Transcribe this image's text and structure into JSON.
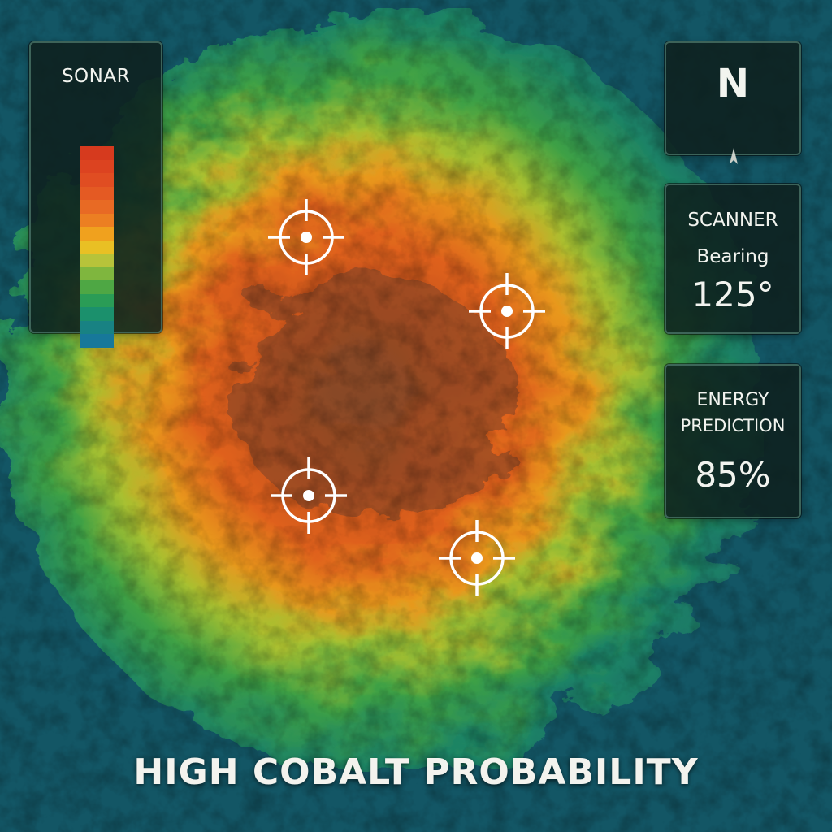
{
  "sonar": {
    "title": "SONAR",
    "scale_colors": [
      "#d63a1e",
      "#dc4320",
      "#e04d22",
      "#e45a23",
      "#e86a24",
      "#ec7f22",
      "#f0a11e",
      "#e9c024",
      "#b7c33a",
      "#7fb63e",
      "#4ea744",
      "#2a9c56",
      "#1b906c",
      "#188283",
      "#17789a"
    ]
  },
  "compass": {
    "heading_letter": "N",
    "needle_icon": "north-arrow-icon"
  },
  "scanner": {
    "title": "SCANNER",
    "bearing_label": "Bearing",
    "bearing_value": "125°"
  },
  "energy": {
    "title_line1": "ENERGY",
    "title_line2": "PREDICTION",
    "value": "85%"
  },
  "targets": [
    {
      "name": "target-marker-1",
      "icon": "crosshair-icon"
    },
    {
      "name": "target-marker-2",
      "icon": "crosshair-icon"
    },
    {
      "name": "target-marker-3",
      "icon": "crosshair-icon"
    },
    {
      "name": "target-marker-4",
      "icon": "crosshair-icon"
    }
  ],
  "footer": {
    "title": "HIGH COBALT PROBABILITY"
  },
  "colors": {
    "panel_bg": "#0e201e",
    "panel_border": "#466e64",
    "text": "#f2f4ef",
    "hot": "#d64a1c",
    "cool": "#0f4a5a"
  }
}
